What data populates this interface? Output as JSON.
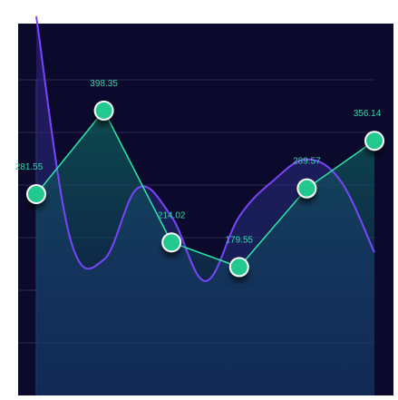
{
  "chart_data": {
    "type": "line",
    "title": "",
    "xlabel": "",
    "ylabel": "",
    "grid": true,
    "ylim": [
      0,
      520
    ],
    "series": [
      {
        "role": "primary",
        "color": "#2ee6a8",
        "marker": "circle",
        "area_fill": true,
        "values": [
          281.55,
          398.35,
          214.02,
          179.55,
          289.57,
          356.14
        ],
        "labels": [
          "281.55",
          "398.35",
          "214.02",
          "179.55",
          "289.57",
          "356.14"
        ]
      },
      {
        "role": "smooth-background",
        "color": "#7a45ff",
        "curve": "smooth",
        "area_fill": true,
        "values": [
          530,
          220,
          190,
          290,
          250,
          160,
          250,
          300,
          330,
          300,
          200
        ]
      }
    ]
  },
  "colors": {
    "panel_background": "#0c0a2c",
    "primary_line": "#2ee6a8",
    "secondary_line": "#7a45ff",
    "label_text": "#34d6a6"
  }
}
